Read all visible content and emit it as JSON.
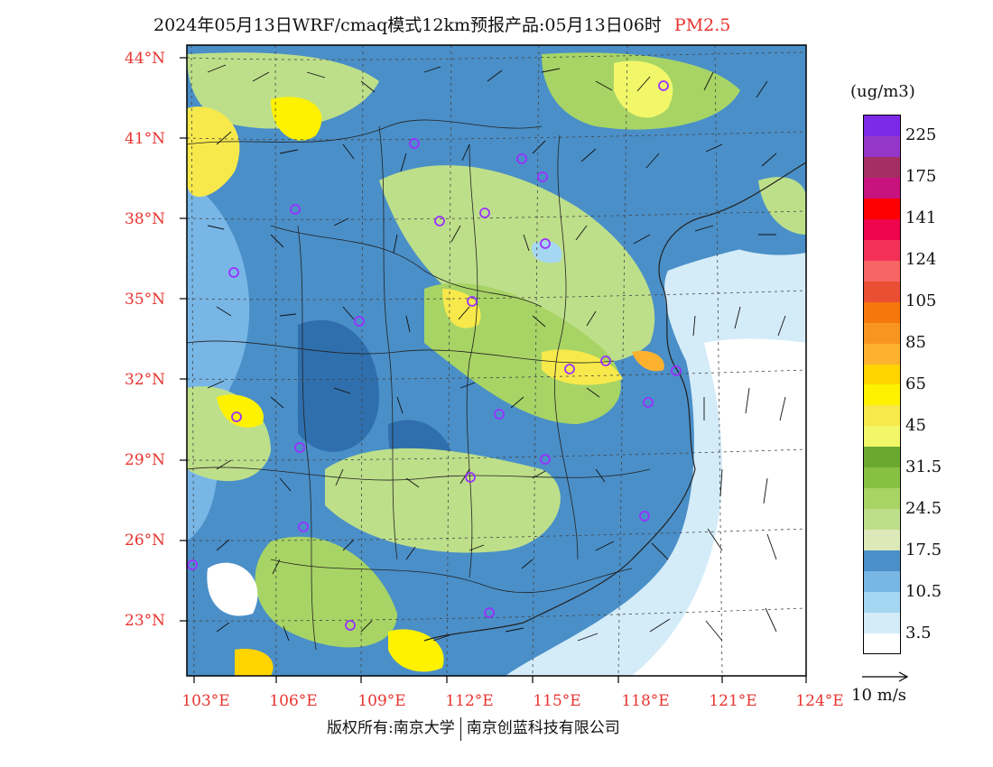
{
  "header": {
    "title": "2024年05月13日WRF/cmaq模式12km预报产品:05月13日06时",
    "product": "PM2.5"
  },
  "map": {
    "lat_labels": [
      "44°N",
      "41°N",
      "38°N",
      "35°N",
      "32°N",
      "29°N",
      "26°N",
      "23°N"
    ],
    "lon_labels": [
      "103°E",
      "106°E",
      "109°E",
      "112°E",
      "115°E",
      "118°E",
      "121°E",
      "124°E"
    ],
    "lat_values": [
      44,
      41,
      38,
      35,
      32,
      29,
      26,
      23
    ],
    "lon_values": [
      103,
      106,
      109,
      112,
      115,
      118,
      121,
      124
    ],
    "extent": {
      "lon_min": 102.8,
      "lon_max": 124.0,
      "lat_min": 21.9,
      "lat_max": 44.3
    },
    "station_marker_color": "#9b30ff"
  },
  "legend": {
    "unit": "(ug/m3)",
    "colors": [
      "#ffffff",
      "#d4ecf8",
      "#a6d7f2",
      "#78b6e6",
      "#4a8fc8",
      "#dde9b9",
      "#bedf8a",
      "#a7d465",
      "#87c144",
      "#6ba830",
      "#f2f76a",
      "#f7e94b",
      "#fff200",
      "#ffd400",
      "#fdb22f",
      "#f89520",
      "#f7770f",
      "#ea4f33",
      "#f76565",
      "#f33158",
      "#ee054b",
      "#ff0000",
      "#c8137f",
      "#a52f63",
      "#9437c8",
      "#7d2ae8"
    ],
    "labels": [
      "3.5",
      "10.5",
      "17.5",
      "24.5",
      "31.5",
      "45",
      "65",
      "85",
      "105",
      "124",
      "141",
      "175",
      "225"
    ]
  },
  "wind_reference": {
    "label": "10 m/s"
  },
  "footer": {
    "copyright": "版权所有:南京大学",
    "company": "南京创蓝科技有限公司"
  }
}
